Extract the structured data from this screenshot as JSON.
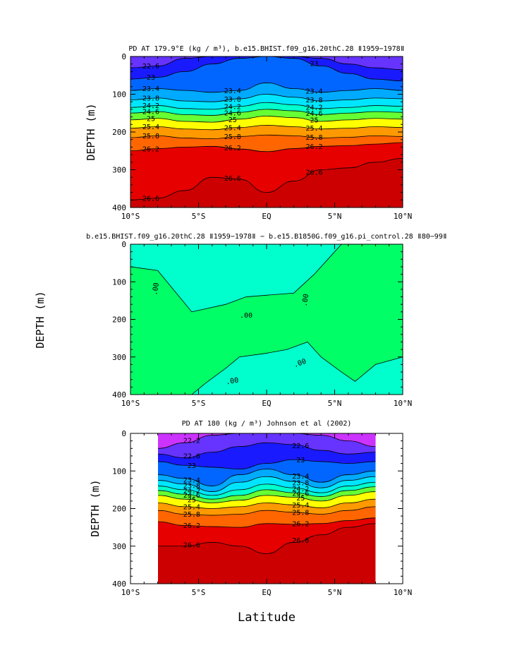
{
  "chart_data": [
    {
      "type": "heatmap",
      "title": "PD AT 179.9°E (kg / m³), b.e15.BHIST.f09_g16.20thC.28 ǁ1959−1978ǁ",
      "xlabel": "",
      "ylabel": "DEPTH (m)",
      "xlim": [
        -10,
        10
      ],
      "ylim": [
        400,
        0
      ],
      "x_ticks": [
        "10°S",
        "5°S",
        "EQ",
        "5°N",
        "10°N"
      ],
      "y_ticks": [
        "0",
        "100",
        "200",
        "300",
        "400"
      ],
      "contour_labels": [
        "22.6",
        "23",
        "23.4",
        "23.8",
        "24.2",
        "24.6",
        "25",
        "25.4",
        "25.8",
        "26.2",
        "26.6"
      ],
      "isopycnals": [
        {
          "value": 22.6,
          "depth": [
            30,
            25,
            5,
            0,
            0,
            0,
            0,
            5,
            20,
            30,
            35
          ]
        },
        {
          "value": 23.0,
          "depth": [
            60,
            55,
            40,
            20,
            5,
            0,
            5,
            25,
            45,
            60,
            65
          ]
        },
        {
          "value": 23.4,
          "depth": [
            90,
            85,
            90,
            95,
            90,
            70,
            85,
            95,
            90,
            85,
            90
          ]
        },
        {
          "value": 23.8,
          "depth": [
            115,
            110,
            118,
            120,
            112,
            100,
            108,
            118,
            115,
            110,
            112
          ]
        },
        {
          "value": 24.2,
          "depth": [
            135,
            130,
            138,
            140,
            132,
            122,
            128,
            138,
            135,
            130,
            132
          ]
        },
        {
          "value": 24.6,
          "depth": [
            150,
            146,
            154,
            156,
            148,
            140,
            144,
            154,
            150,
            146,
            148
          ]
        },
        {
          "value": 25.0,
          "depth": [
            168,
            164,
            172,
            174,
            166,
            158,
            162,
            172,
            168,
            164,
            166
          ]
        },
        {
          "value": 25.4,
          "depth": [
            190,
            186,
            192,
            194,
            188,
            182,
            186,
            192,
            190,
            186,
            188
          ]
        },
        {
          "value": 25.8,
          "depth": [
            215,
            210,
            216,
            218,
            212,
            208,
            210,
            216,
            214,
            210,
            212
          ]
        },
        {
          "value": 26.2,
          "depth": [
            250,
            244,
            240,
            238,
            245,
            252,
            244,
            238,
            236,
            232,
            228
          ]
        },
        {
          "value": 26.6,
          "depth": [
            380,
            375,
            355,
            320,
            325,
            360,
            330,
            300,
            295,
            280,
            270
          ]
        }
      ]
    },
    {
      "type": "heatmap",
      "title": "b.e15.BHIST.f09_g16.20thC.28 ǁ1959−1978ǁ − b.e15.B1850G.f09_g16.pi_control.28 ǁ80−99ǁ",
      "xlabel": "",
      "ylabel": "DEPTH (m)",
      "xlim": [
        -10,
        10
      ],
      "ylim": [
        400,
        0
      ],
      "x_ticks": [
        "10°S",
        "5°S",
        "EQ",
        "5°N",
        "10°N"
      ],
      "y_ticks": [
        "0",
        "100",
        "200",
        "300",
        "400"
      ],
      "contour_labels": [
        ".00",
        ".00",
        ".00",
        ".00",
        ".00"
      ]
    },
    {
      "type": "heatmap",
      "title": "PD AT 180 (kg / m³) Johnson et al (2002)",
      "xlabel": "Latitude",
      "ylabel": "DEPTH (m)",
      "xlim": [
        -10,
        10
      ],
      "data_xlim": [
        -8,
        8
      ],
      "ylim": [
        400,
        0
      ],
      "x_ticks": [
        "10°S",
        "5°S",
        "EQ",
        "5°N",
        "10°N"
      ],
      "y_ticks": [
        "0",
        "100",
        "200",
        "300",
        "400"
      ],
      "contour_labels": [
        "22.2",
        "22.6",
        "23",
        "23.4",
        "23.8",
        "24.2",
        "24.6",
        "25",
        "25.4",
        "25.8",
        "26.2",
        "26.6"
      ],
      "isopycnals": [
        {
          "value": 22.2,
          "depth": [
            40,
            25,
            5,
            0,
            0,
            0,
            5,
            20,
            35
          ]
        },
        {
          "value": 22.6,
          "depth": [
            55,
            65,
            50,
            35,
            25,
            30,
            45,
            55,
            50
          ]
        },
        {
          "value": 23.0,
          "depth": [
            75,
            85,
            90,
            95,
            80,
            70,
            75,
            80,
            75
          ]
        },
        {
          "value": 23.4,
          "depth": [
            110,
            120,
            140,
            110,
            95,
            110,
            130,
            110,
            100
          ]
        },
        {
          "value": 23.8,
          "depth": [
            125,
            135,
            155,
            130,
            115,
            128,
            145,
            125,
            115
          ]
        },
        {
          "value": 24.2,
          "depth": [
            140,
            150,
            165,
            150,
            135,
            145,
            158,
            140,
            130
          ]
        },
        {
          "value": 24.6,
          "depth": [
            152,
            162,
            175,
            165,
            150,
            158,
            168,
            152,
            142
          ]
        },
        {
          "value": 25.0,
          "depth": [
            165,
            175,
            185,
            178,
            165,
            170,
            180,
            165,
            155
          ]
        },
        {
          "value": 25.4,
          "depth": [
            185,
            195,
            200,
            195,
            185,
            190,
            198,
            185,
            175
          ]
        },
        {
          "value": 25.8,
          "depth": [
            205,
            215,
            218,
            215,
            205,
            210,
            215,
            205,
            195
          ]
        },
        {
          "value": 26.2,
          "depth": [
            235,
            245,
            248,
            250,
            240,
            242,
            240,
            232,
            225
          ]
        },
        {
          "value": 26.6,
          "depth": [
            300,
            300,
            290,
            300,
            320,
            290,
            270,
            250,
            240
          ]
        }
      ]
    }
  ],
  "colors": {
    "scale": [
      "#cc0000",
      "#e60000",
      "#ff3300",
      "#ff6600",
      "#ff9900",
      "#ffcc00",
      "#ffff00",
      "#ccff00",
      "#66ff33",
      "#00ff99",
      "#00ffcc",
      "#00e5ff",
      "#00ccff",
      "#00aaff",
      "#0088ff",
      "#0066ff",
      "#0044ff",
      "#1a1aff",
      "#6633ff",
      "#9933ff",
      "#cc33ff",
      "#ff33ff"
    ],
    "diff_positive": "#00ff66",
    "diff_negative": "#00ffcc"
  }
}
